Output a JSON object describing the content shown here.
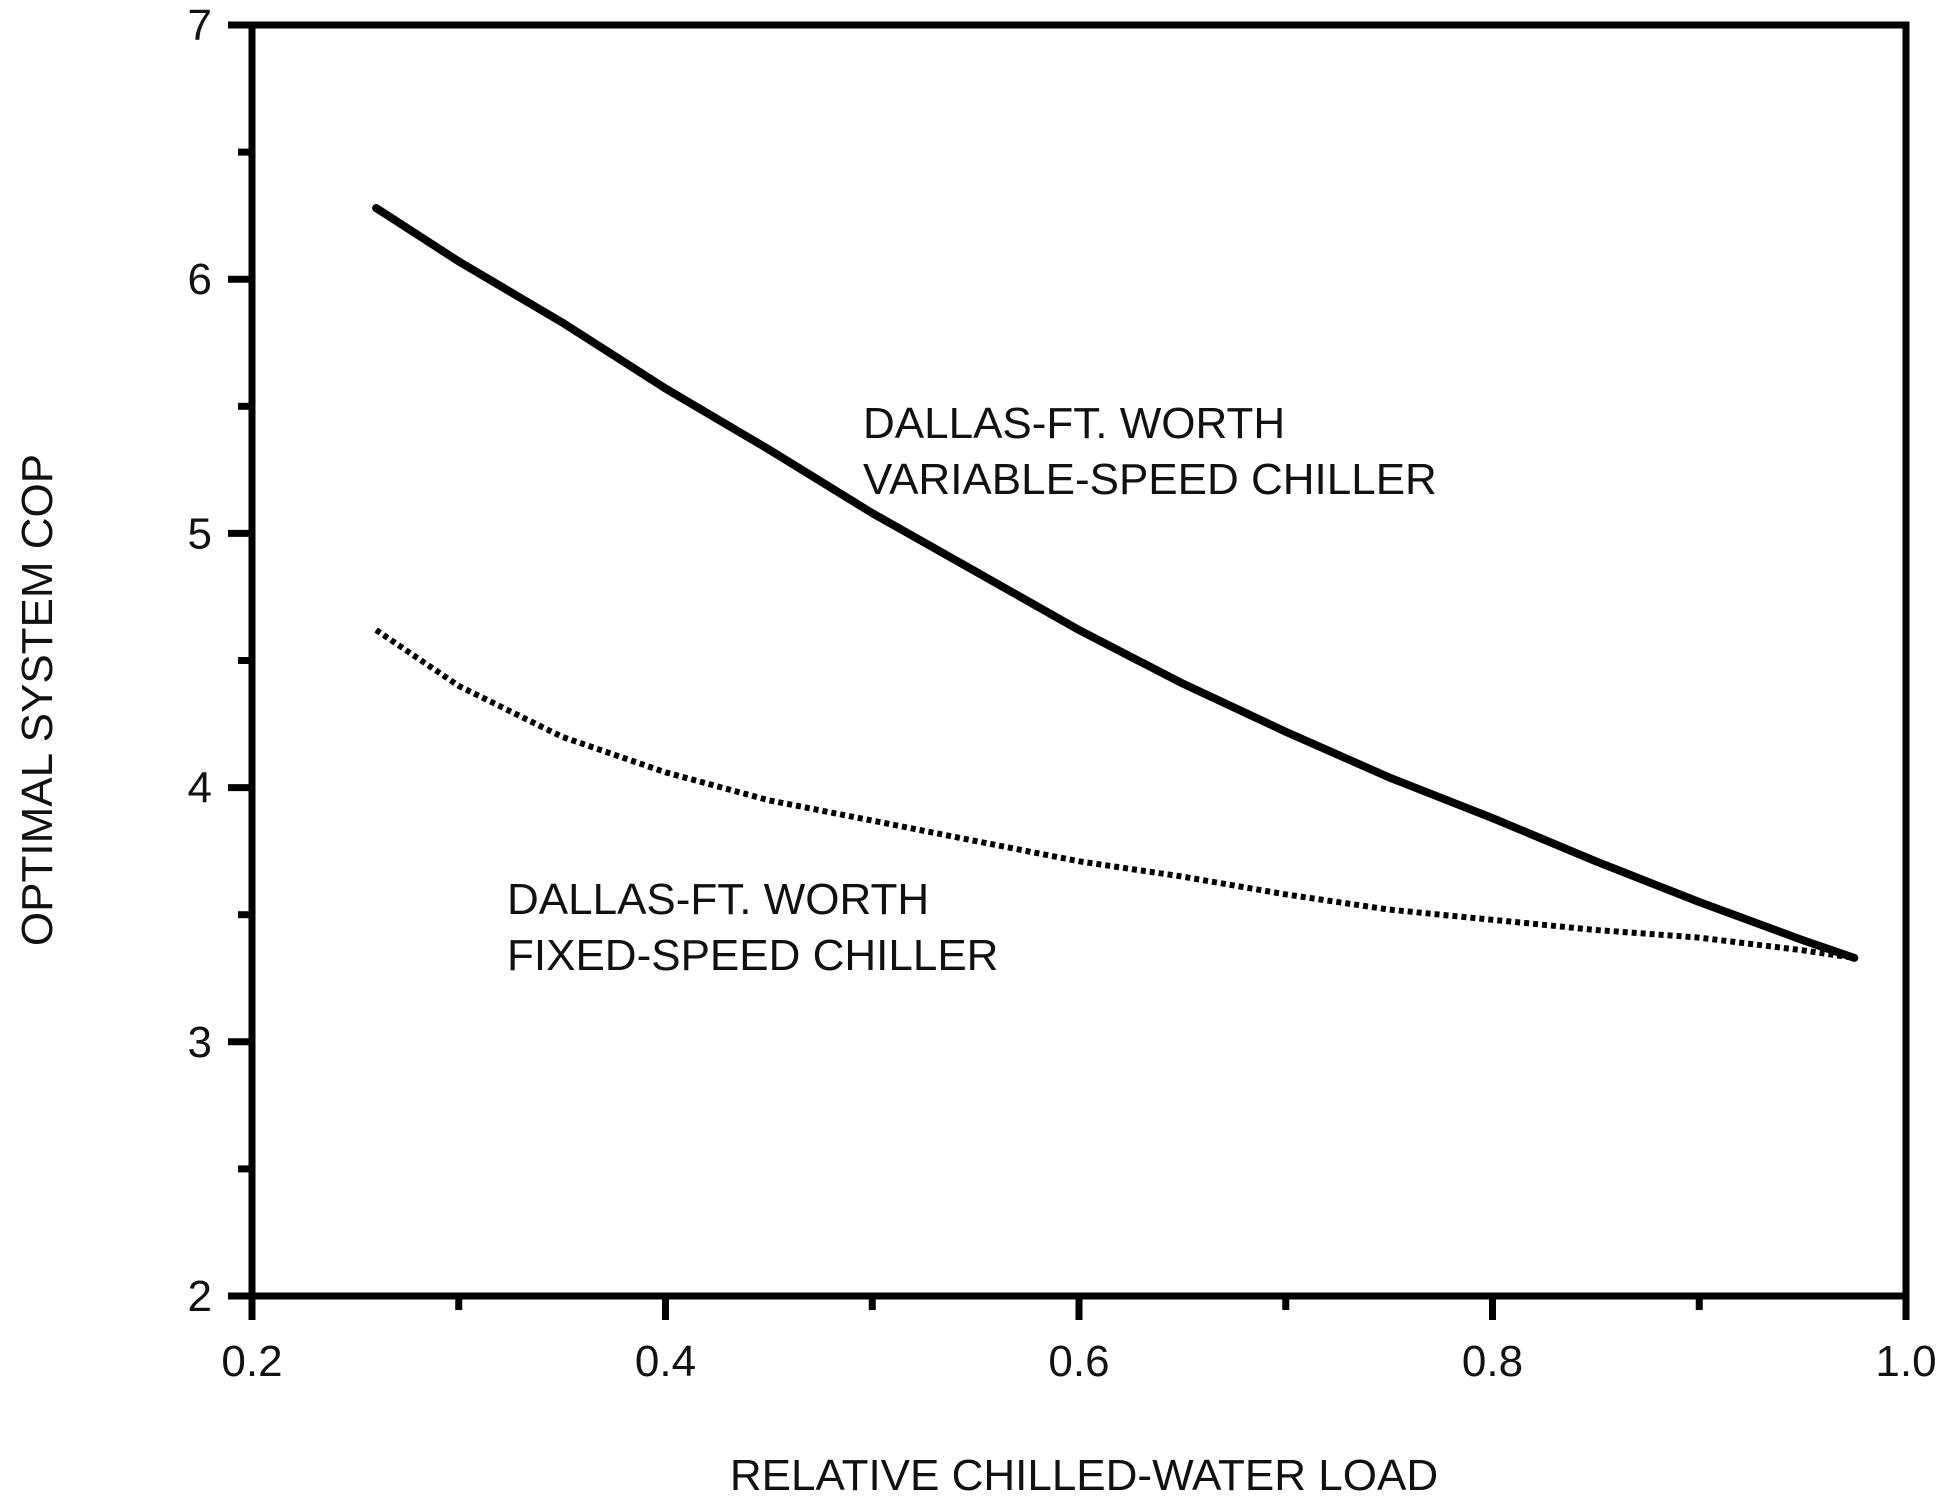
{
  "chart_data": {
    "type": "line",
    "title": "",
    "xlabel": "RELATIVE CHILLED-WATER LOAD",
    "ylabel": "OPTIMAL SYSTEM COP",
    "xlim": [
      0.2,
      1.0
    ],
    "ylim": [
      2,
      7
    ],
    "x_ticks": [
      "0.2",
      "0.4",
      "0.6",
      "0.8",
      "1.0"
    ],
    "y_ticks": [
      "2",
      "3",
      "4",
      "5",
      "6",
      "7"
    ],
    "grid": false,
    "legend": "none",
    "series": [
      {
        "label_lines": [
          "DALLAS-FT. WORTH",
          "VARIABLE-SPEED CHILLER"
        ],
        "style": "solid",
        "color": "#000000",
        "x": [
          0.26,
          0.3,
          0.35,
          0.4,
          0.45,
          0.5,
          0.55,
          0.6,
          0.65,
          0.7,
          0.75,
          0.8,
          0.85,
          0.9,
          0.95,
          0.975
        ],
        "y": [
          6.28,
          6.07,
          5.83,
          5.57,
          5.33,
          5.08,
          4.85,
          4.62,
          4.41,
          4.22,
          4.04,
          3.88,
          3.71,
          3.55,
          3.4,
          3.33
        ]
      },
      {
        "label_lines": [
          "DALLAS-FT. WORTH",
          "FIXED-SPEED CHILLER"
        ],
        "style": "dotted",
        "color": "#000000",
        "x": [
          0.26,
          0.3,
          0.35,
          0.4,
          0.45,
          0.5,
          0.55,
          0.6,
          0.65,
          0.7,
          0.75,
          0.8,
          0.85,
          0.9,
          0.95,
          0.975
        ],
        "y": [
          4.62,
          4.4,
          4.2,
          4.06,
          3.95,
          3.87,
          3.79,
          3.71,
          3.65,
          3.58,
          3.52,
          3.48,
          3.44,
          3.41,
          3.36,
          3.33
        ]
      }
    ]
  }
}
